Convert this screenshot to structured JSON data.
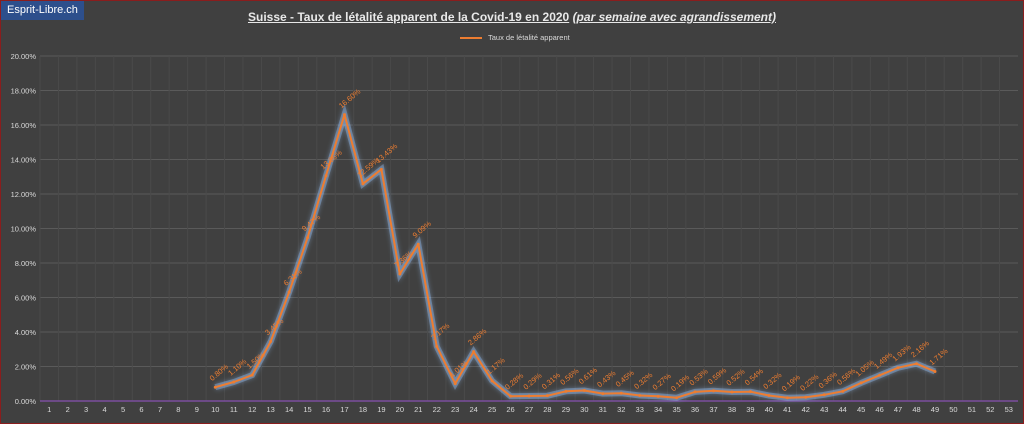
{
  "brand": "Esprit-Libre.ch",
  "title": "Suisse - Taux de létalité apparent de la Covid-19 en 2020",
  "title_suffix": "(par semaine avec agrandissement)",
  "colors": {
    "background": "#404040",
    "line": "#ed7d31",
    "grid": "#5a5a5a",
    "axis": "#7a4e9e",
    "text": "#d9d9d9"
  },
  "chart_data": {
    "type": "line",
    "title": "Suisse - Taux de létalité apparent de la Covid-19 en 2020 (par semaine avec agrandissement)",
    "legend_position": "top-center",
    "grid": true,
    "x": [
      1,
      2,
      3,
      4,
      5,
      6,
      7,
      8,
      9,
      10,
      11,
      12,
      13,
      14,
      15,
      16,
      17,
      18,
      19,
      20,
      21,
      22,
      23,
      24,
      25,
      26,
      27,
      28,
      29,
      30,
      31,
      32,
      33,
      34,
      35,
      36,
      37,
      38,
      39,
      40,
      41,
      42,
      43,
      44,
      45,
      46,
      47,
      48,
      49,
      50,
      51,
      52,
      53
    ],
    "ylim": [
      0,
      20
    ],
    "yticks": [
      "0.00%",
      "2.00%",
      "4.00%",
      "6.00%",
      "8.00%",
      "10.00%",
      "12.00%",
      "14.00%",
      "16.00%",
      "18.00%",
      "20.00%"
    ],
    "series": [
      {
        "name": "Taux de létalité apparent",
        "points": [
          {
            "x": 10,
            "y": 0.8,
            "label": "0.80%"
          },
          {
            "x": 11,
            "y": 1.1,
            "label": "1.10%"
          },
          {
            "x": 12,
            "y": 1.5,
            "label": "1.50%"
          },
          {
            "x": 13,
            "y": 3.45,
            "label": "3.45%"
          },
          {
            "x": 14,
            "y": 6.31,
            "label": "6.31%"
          },
          {
            "x": 15,
            "y": 9.47,
            "label": "9.47%"
          },
          {
            "x": 16,
            "y": 13.06,
            "label": "13.06%"
          },
          {
            "x": 17,
            "y": 16.6,
            "label": "16.60%"
          },
          {
            "x": 18,
            "y": 12.59,
            "label": "12.59%"
          },
          {
            "x": 19,
            "y": 13.43,
            "label": "13.43%"
          },
          {
            "x": 20,
            "y": 7.36,
            "label": "7.36%"
          },
          {
            "x": 21,
            "y": 9.09,
            "label": "9.09%"
          },
          {
            "x": 22,
            "y": 3.17,
            "label": "3.17%"
          },
          {
            "x": 23,
            "y": 1.01,
            "label": "1.01%"
          },
          {
            "x": 24,
            "y": 2.86,
            "label": "2.86%"
          },
          {
            "x": 25,
            "y": 1.17,
            "label": "1.17%"
          },
          {
            "x": 26,
            "y": 0.28,
            "label": "0.28%"
          },
          {
            "x": 27,
            "y": 0.29,
            "label": "0.29%"
          },
          {
            "x": 28,
            "y": 0.31,
            "label": "0.31%"
          },
          {
            "x": 29,
            "y": 0.56,
            "label": "0.56%"
          },
          {
            "x": 30,
            "y": 0.61,
            "label": "0.61%"
          },
          {
            "x": 31,
            "y": 0.43,
            "label": "0.43%"
          },
          {
            "x": 32,
            "y": 0.45,
            "label": "0.45%"
          },
          {
            "x": 33,
            "y": 0.32,
            "label": "0.32%"
          },
          {
            "x": 34,
            "y": 0.27,
            "label": "0.27%"
          },
          {
            "x": 35,
            "y": 0.19,
            "label": "0.19%"
          },
          {
            "x": 36,
            "y": 0.53,
            "label": "0.53%"
          },
          {
            "x": 37,
            "y": 0.59,
            "label": "0.59%"
          },
          {
            "x": 38,
            "y": 0.52,
            "label": "0.52%"
          },
          {
            "x": 39,
            "y": 0.54,
            "label": "0.54%"
          },
          {
            "x": 40,
            "y": 0.32,
            "label": "0.32%"
          },
          {
            "x": 41,
            "y": 0.19,
            "label": "0.19%"
          },
          {
            "x": 42,
            "y": 0.22,
            "label": "0.22%"
          },
          {
            "x": 43,
            "y": 0.36,
            "label": "0.36%"
          },
          {
            "x": 44,
            "y": 0.56,
            "label": "0.56%"
          },
          {
            "x": 45,
            "y": 1.05,
            "label": "1.05%"
          },
          {
            "x": 46,
            "y": 1.49,
            "label": "1.49%"
          },
          {
            "x": 47,
            "y": 1.93,
            "label": "1.93%"
          },
          {
            "x": 48,
            "y": 2.16,
            "label": "2.16%"
          },
          {
            "x": 49,
            "y": 1.71,
            "label": "1.71%"
          }
        ]
      }
    ]
  }
}
